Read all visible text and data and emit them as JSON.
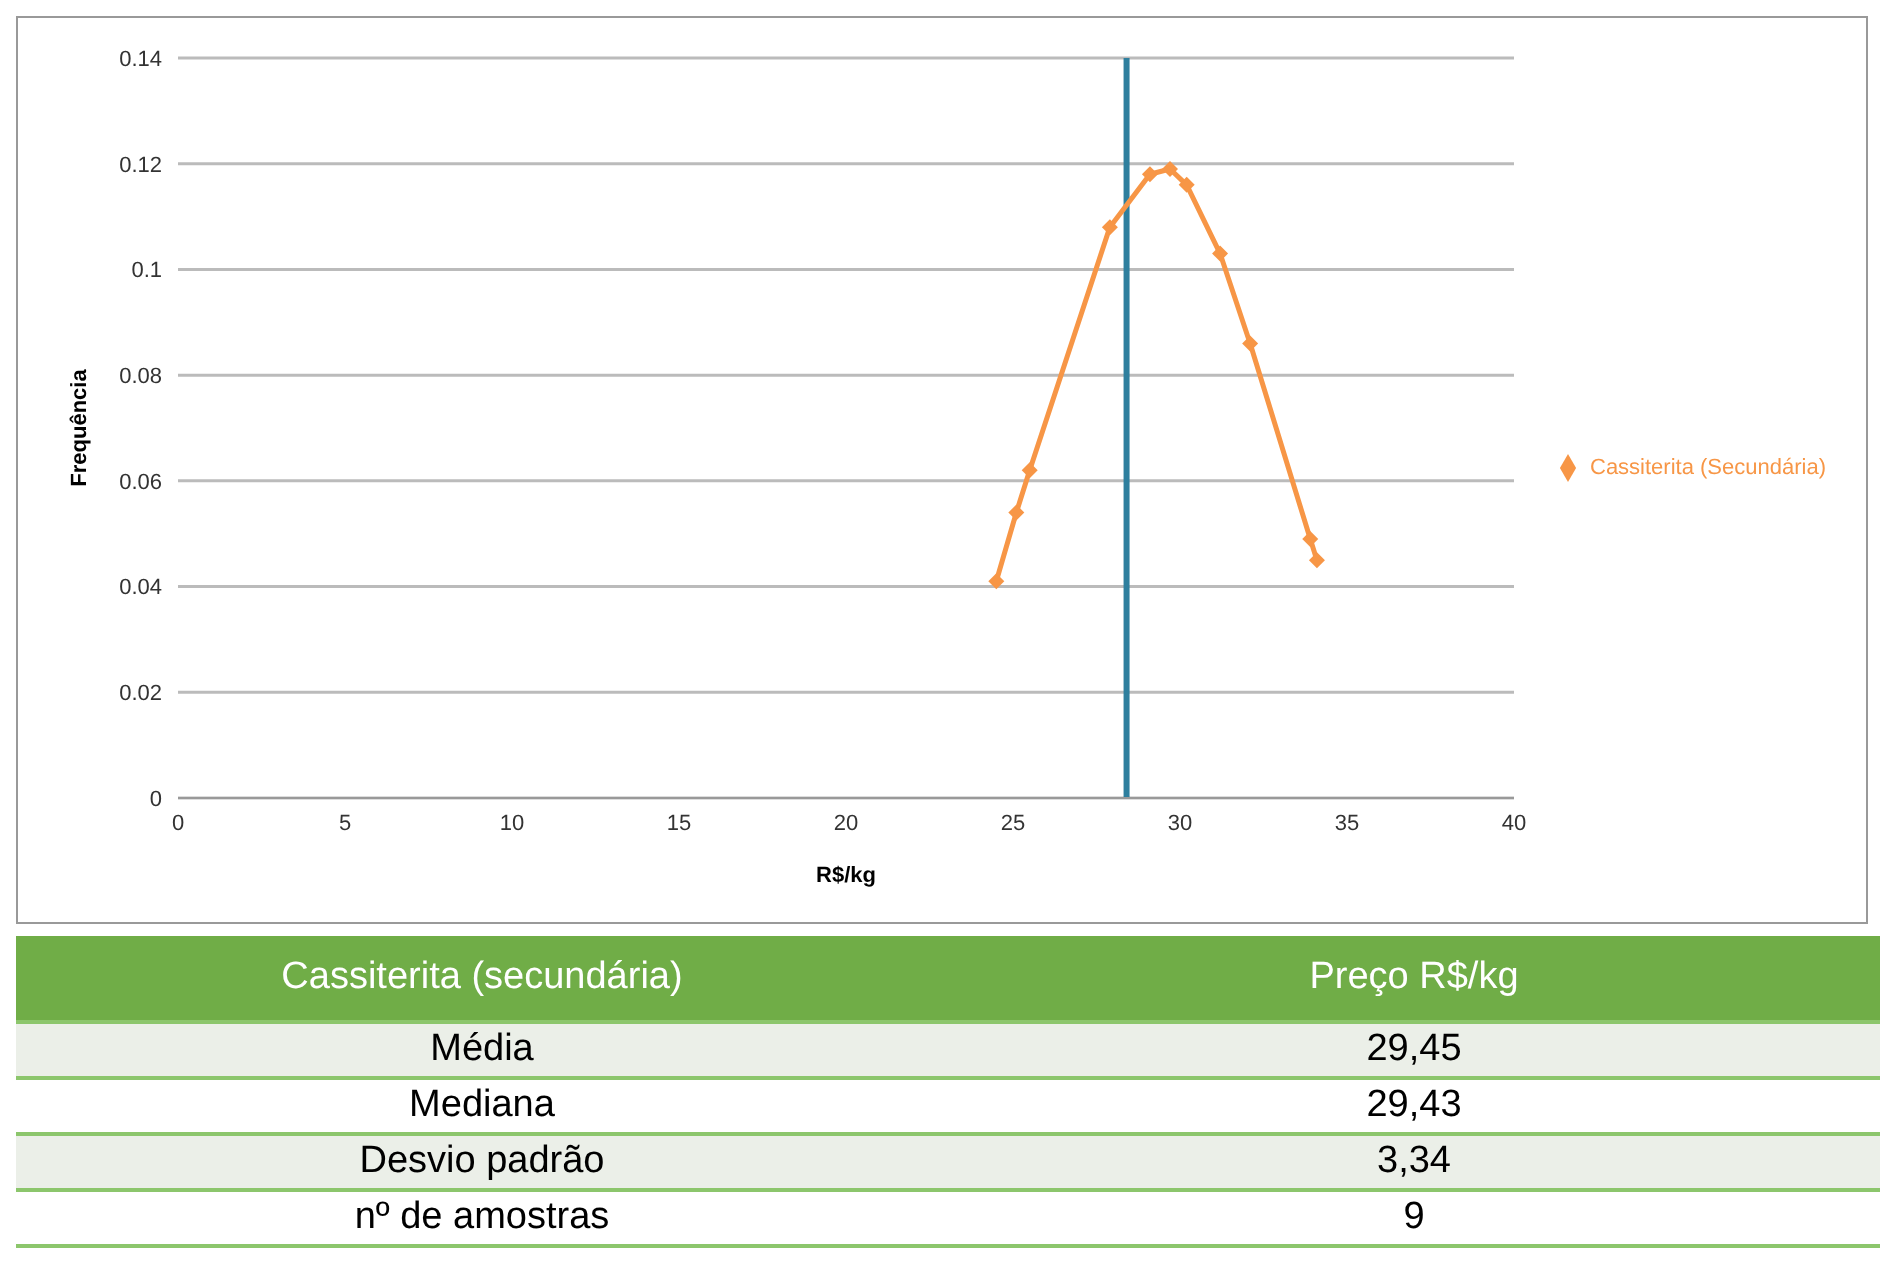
{
  "chart_data": {
    "type": "line",
    "xlabel": "R$/kg",
    "ylabel": "Frequência",
    "series": [
      {
        "name": "Cassiterita (Secundária)",
        "color": "#f79646",
        "x": [
          24.5,
          25.1,
          25.5,
          27.9,
          29.1,
          29.7,
          30.2,
          31.2,
          32.1,
          33.9,
          34.1
        ],
        "values": [
          0.041,
          0.054,
          0.062,
          0.108,
          0.118,
          0.119,
          0.116,
          0.103,
          0.086,
          0.049,
          0.045
        ]
      }
    ],
    "xlim": [
      0,
      40
    ],
    "xticks": [
      0,
      5,
      10,
      15,
      20,
      25,
      30,
      35,
      40
    ],
    "ylim": [
      0,
      0.14
    ],
    "yticks": [
      0,
      0.02,
      0.04,
      0.06,
      0.08,
      0.1,
      0.12,
      0.14
    ],
    "ref_lines": [
      {
        "axis": "x",
        "value": 28.4,
        "color": "#2e7f9e"
      }
    ],
    "grid": "y",
    "legend": "right",
    "marker": "diamond",
    "line_style": "solid",
    "annotations": [
      "Cassiterita (secundária)",
      "Preço R$/kg",
      "Média",
      "29,45",
      "Mediana",
      "29,43",
      "Desvio padrão",
      "3,34",
      "nº de amostras",
      "9"
    ]
  }
}
